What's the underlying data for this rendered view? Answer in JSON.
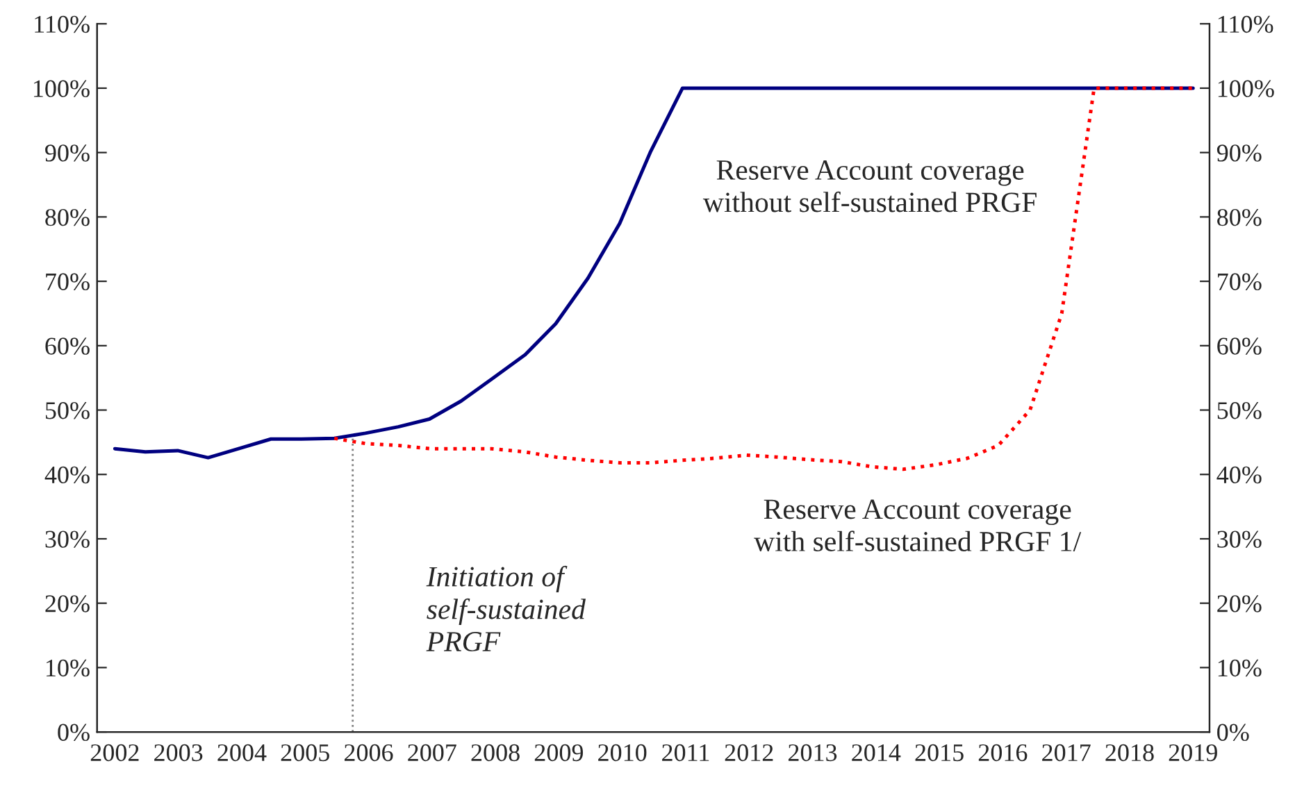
{
  "chart_data": {
    "type": "line",
    "series": [
      {
        "color": "#000080",
        "line_style": "solid",
        "x": [
          2002.0,
          2002.48,
          2002.99,
          2003.47,
          2003.95,
          2004.46,
          2004.94,
          2005.46,
          2005.95,
          2006.47,
          2006.96,
          2007.46,
          2007.94,
          2008.47,
          2008.95,
          2009.46,
          2009.96,
          2010.44,
          2010.95,
          2019.0
        ],
        "values": [
          44,
          43.5,
          43.7,
          42.6,
          44,
          45.5,
          45.5,
          45.6,
          46.4,
          47.4,
          48.6,
          51.4,
          54.8,
          58.6,
          63.4,
          70.5,
          79,
          90,
          100,
          100
        ]
      },
      {
        "color": "#ff0000",
        "line_style": "dotted",
        "x": [
          2005.46,
          2005.95,
          2006.47,
          2006.96,
          2007.46,
          2007.94,
          2008.47,
          2008.95,
          2009.46,
          2009.96,
          2010.44,
          2010.95,
          2011.45,
          2011.96,
          2012.44,
          2012.94,
          2013.45,
          2013.93,
          2014.43,
          2014.94,
          2015.44,
          2015.93,
          2016.43,
          2016.93,
          2017.44,
          2019.0
        ],
        "values": [
          45.6,
          44.8,
          44.5,
          44,
          44,
          44,
          43.5,
          42.7,
          42.2,
          41.8,
          41.8,
          42.2,
          42.5,
          43,
          42.7,
          42.3,
          42,
          41.2,
          40.8,
          41.5,
          42.5,
          44.5,
          50,
          65,
          100,
          100
        ]
      },
      {
        "color": "#808080",
        "line_style": "dotted",
        "x": [
          2005.75,
          2005.75
        ],
        "values": [
          0,
          45.6
        ]
      }
    ],
    "xlim": [
      2001.72,
      2019.26
    ],
    "xticks": [
      2002,
      2003,
      2004,
      2005,
      2006,
      2007,
      2008,
      2009,
      2010,
      2011,
      2012,
      2013,
      2014,
      2015,
      2016,
      2017,
      2018,
      2019
    ],
    "ylim": [
      0,
      110
    ],
    "yticks": [
      {
        "value": 0,
        "label": "0%"
      },
      {
        "value": 10,
        "label": "10%"
      },
      {
        "value": 20,
        "label": "20%"
      },
      {
        "value": 30,
        "label": "30%"
      },
      {
        "value": 40,
        "label": "40%"
      },
      {
        "value": 50,
        "label": "50%"
      },
      {
        "value": 60,
        "label": "60%"
      },
      {
        "value": 70,
        "label": "70%"
      },
      {
        "value": 80,
        "label": "80%"
      },
      {
        "value": 90,
        "label": "90%"
      },
      {
        "value": 100,
        "label": "100%"
      },
      {
        "value": 110,
        "label": "110%"
      }
    ],
    "y2lim": [
      0,
      110
    ],
    "y2ticks": [
      {
        "value": 0,
        "label": "0%"
      },
      {
        "value": 10,
        "label": "10%"
      },
      {
        "value": 20,
        "label": "20%"
      },
      {
        "value": 30,
        "label": "30%"
      },
      {
        "value": 40,
        "label": "40%"
      },
      {
        "value": 50,
        "label": "50%"
      },
      {
        "value": 60,
        "label": "60%"
      },
      {
        "value": 70,
        "label": "70%"
      },
      {
        "value": 80,
        "label": "80%"
      },
      {
        "value": 90,
        "label": "90%"
      },
      {
        "value": 100,
        "label": "100%"
      },
      {
        "value": 110,
        "label": "110%"
      }
    ],
    "annotations": [
      "Reserve Account coverage\nwithout self-sustained PRGF",
      "Reserve Account coverage\nwith self-sustained PRGF 1/",
      "Initiation of\nself-sustained\nPRGF"
    ]
  }
}
